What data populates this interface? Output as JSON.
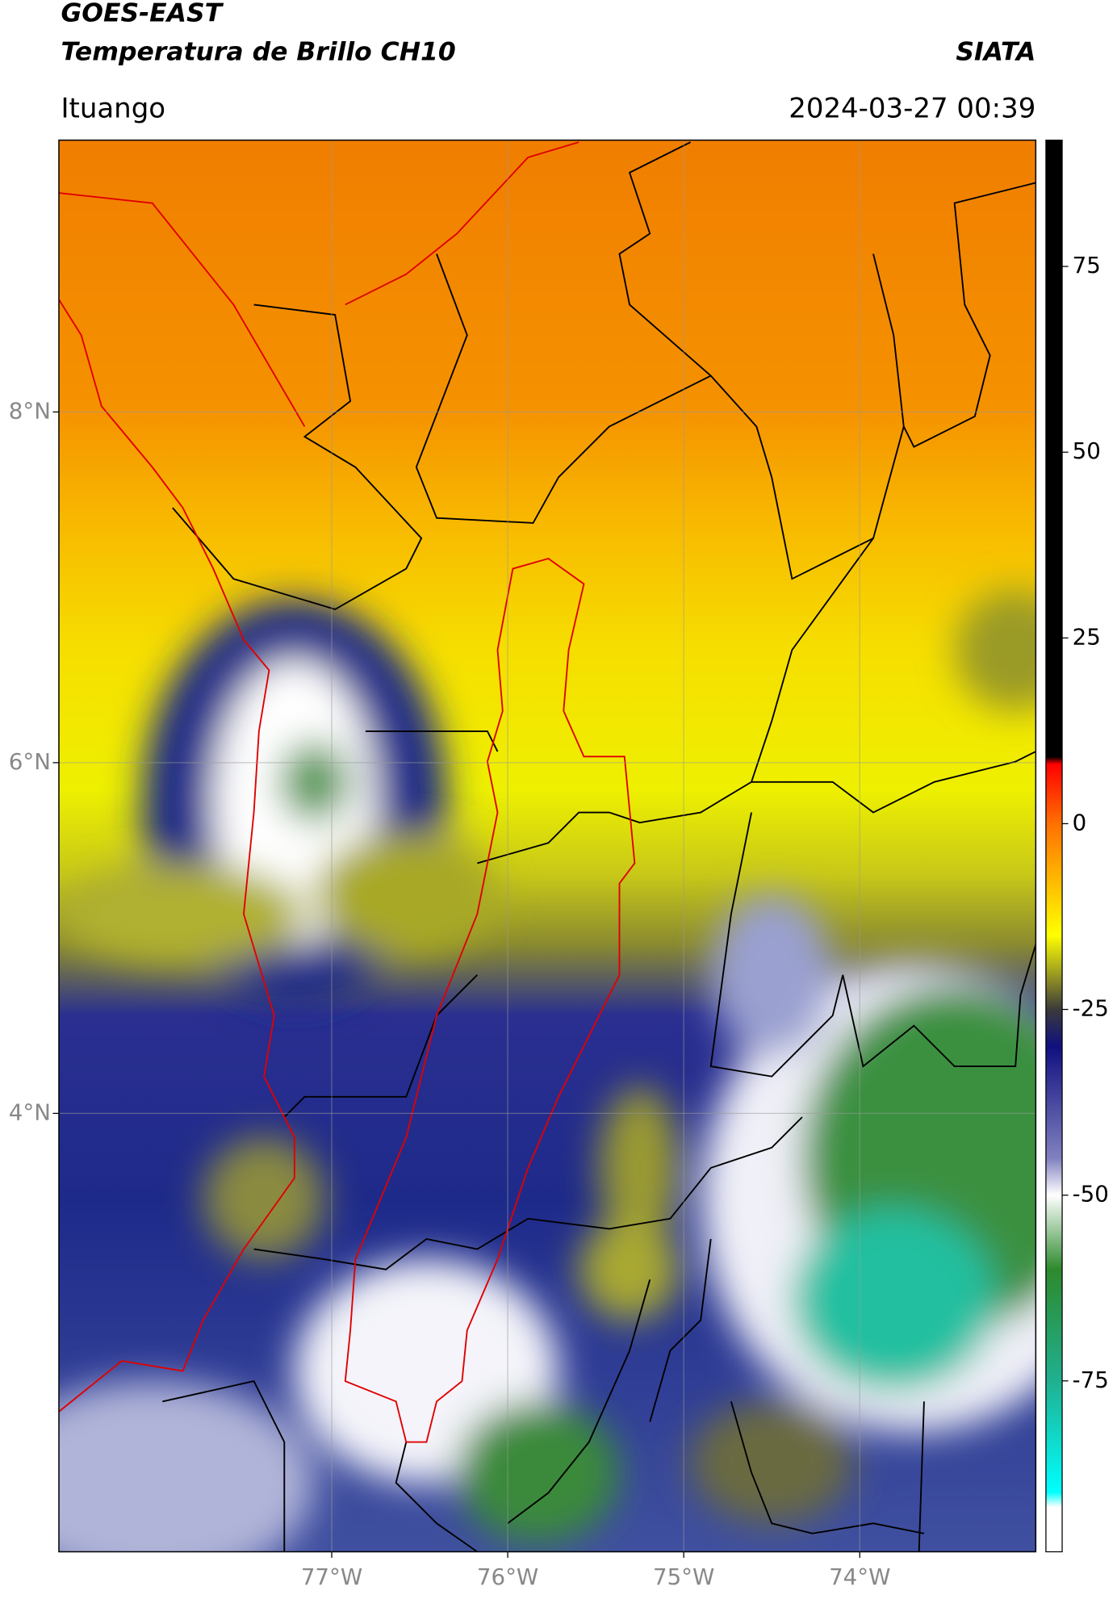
{
  "header": {
    "title": "GOES-EAST",
    "subtitle": "Temperatura de Brillo CH10",
    "source": "SIATA",
    "location": "Ituango",
    "datetime": "2024-03-27 00:39"
  },
  "map": {
    "xlim": [
      -78.55,
      -73.0
    ],
    "ylim": [
      1.5,
      9.55
    ],
    "xticks": [
      {
        "value": -77,
        "label": "77°W"
      },
      {
        "value": -76,
        "label": "76°W"
      },
      {
        "value": -75,
        "label": "75°W"
      },
      {
        "value": -74,
        "label": "74°W"
      }
    ],
    "yticks": [
      {
        "value": 8,
        "label": "8°N"
      },
      {
        "value": 6,
        "label": "6°N"
      },
      {
        "value": 4,
        "label": "4°N"
      }
    ],
    "grid": true
  },
  "colorbar": {
    "lim": [
      -98,
      92
    ],
    "ticks": [
      75,
      50,
      25,
      0,
      -25,
      -50,
      -75
    ],
    "stops": [
      {
        "value": 92,
        "color": "#000000"
      },
      {
        "value": 9,
        "color": "#000000"
      },
      {
        "value": 8,
        "color": "#ff0000"
      },
      {
        "value": 0,
        "color": "#ff7000"
      },
      {
        "value": -10,
        "color": "#ffd000"
      },
      {
        "value": -15,
        "color": "#ffff00"
      },
      {
        "value": -20,
        "color": "#a0a020"
      },
      {
        "value": -25,
        "color": "#3a3a3a"
      },
      {
        "value": -30,
        "color": "#101080"
      },
      {
        "value": -45,
        "color": "#8080c0"
      },
      {
        "value": -50,
        "color": "#ffffff"
      },
      {
        "value": -60,
        "color": "#2d8a2d"
      },
      {
        "value": -75,
        "color": "#20b090"
      },
      {
        "value": -90,
        "color": "#00ffff"
      },
      {
        "value": -92,
        "color": "#ffffff"
      },
      {
        "value": -98,
        "color": "#ffffff"
      }
    ]
  }
}
